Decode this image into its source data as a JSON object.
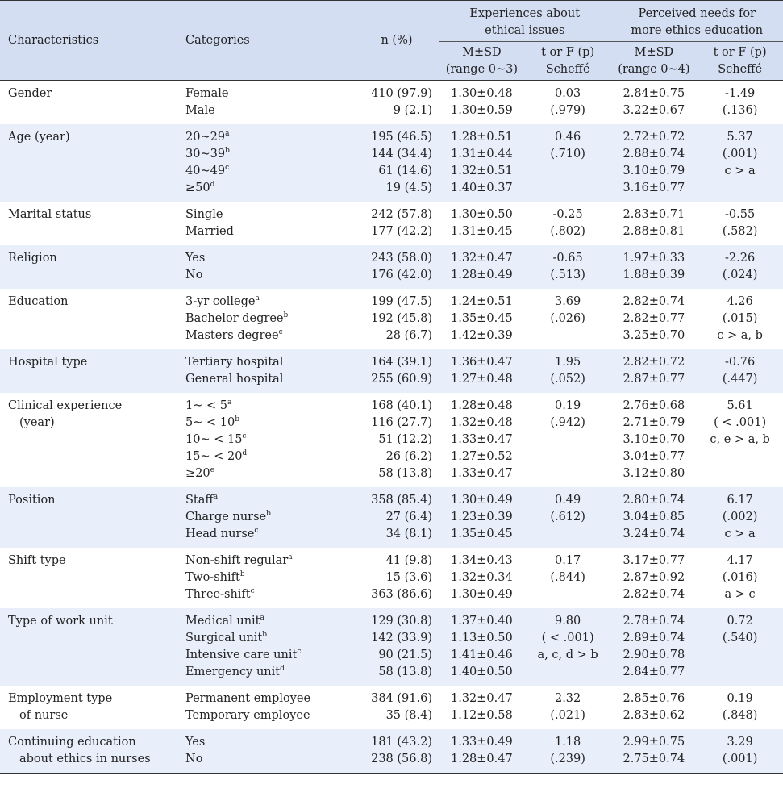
{
  "header": {
    "characteristics": "Characteristics",
    "categories": "Categories",
    "n_pct": "n (%)",
    "group1": [
      "Experiences about",
      "ethical issues"
    ],
    "group2": [
      "Perceived needs for",
      "more ethics education"
    ],
    "msd1": [
      "M±SD",
      "(range 0~3)"
    ],
    "stat1": [
      "t or F (p)",
      "Scheffé"
    ],
    "msd2": [
      "M±SD",
      "(range 0~4)"
    ],
    "stat2": [
      "t or F (p)",
      "Scheffé"
    ]
  },
  "rows": [
    {
      "char": [
        "Gender"
      ],
      "cats": [
        [
          "Female",
          ""
        ],
        [
          "Male",
          ""
        ]
      ],
      "n": [
        "410 (97.9)",
        "9 (2.1)"
      ],
      "m1": [
        "1.30±0.48",
        "1.30±0.59"
      ],
      "s1": [
        "0.03",
        "(.979)"
      ],
      "m2": [
        "2.84±0.75",
        "3.22±0.67"
      ],
      "s2": [
        "-1.49",
        "(.136)"
      ]
    },
    {
      "char": [
        "Age (year)"
      ],
      "cats": [
        [
          "20~29",
          "a"
        ],
        [
          "30~39",
          "b"
        ],
        [
          "40~49",
          "c"
        ],
        [
          "≥50",
          "d"
        ]
      ],
      "n": [
        "195 (46.5)",
        "144 (34.4)",
        "61 (14.6)",
        "19 (4.5)"
      ],
      "m1": [
        "1.28±0.51",
        "1.31±0.44",
        "1.32±0.51",
        "1.40±0.37"
      ],
      "s1": [
        "0.46",
        "(.710)"
      ],
      "m2": [
        "2.72±0.72",
        "2.88±0.74",
        "3.10±0.79",
        "3.16±0.77"
      ],
      "s2": [
        "5.37",
        "(.001)",
        "c > a"
      ]
    },
    {
      "char": [
        "Marital status"
      ],
      "cats": [
        [
          "Single",
          ""
        ],
        [
          "Married",
          ""
        ]
      ],
      "n": [
        "242 (57.8)",
        "177 (42.2)"
      ],
      "m1": [
        "1.30±0.50",
        "1.31±0.45"
      ],
      "s1": [
        "-0.25",
        "(.802)"
      ],
      "m2": [
        "2.83±0.71",
        "2.88±0.81"
      ],
      "s2": [
        "-0.55",
        "(.582)"
      ]
    },
    {
      "char": [
        "Religion"
      ],
      "cats": [
        [
          "Yes",
          ""
        ],
        [
          "No",
          ""
        ]
      ],
      "n": [
        "243 (58.0)",
        "176 (42.0)"
      ],
      "m1": [
        "1.32±0.47",
        "1.28±0.49"
      ],
      "s1": [
        "-0.65",
        "(.513)"
      ],
      "m2": [
        "1.97±0.33",
        "1.88±0.39"
      ],
      "s2": [
        "-2.26",
        "(.024)"
      ]
    },
    {
      "char": [
        "Education"
      ],
      "cats": [
        [
          "3-yr college",
          "a"
        ],
        [
          "Bachelor degree",
          "b"
        ],
        [
          "Masters degree",
          "c"
        ]
      ],
      "n": [
        "199 (47.5)",
        "192 (45.8)",
        "28 (6.7)"
      ],
      "m1": [
        "1.24±0.51",
        "1.35±0.45",
        "1.42±0.39"
      ],
      "s1": [
        "3.69",
        "(.026)"
      ],
      "m2": [
        "2.82±0.74",
        "2.82±0.77",
        "3.25±0.70"
      ],
      "s2": [
        "4.26",
        "(.015)",
        "c > a, b"
      ]
    },
    {
      "char": [
        "Hospital type"
      ],
      "cats": [
        [
          "Tertiary hospital",
          ""
        ],
        [
          "General hospital",
          ""
        ]
      ],
      "n": [
        "164 (39.1)",
        "255 (60.9)"
      ],
      "m1": [
        "1.36±0.47",
        "1.27±0.48"
      ],
      "s1": [
        "1.95",
        "(.052)"
      ],
      "m2": [
        "2.82±0.72",
        "2.87±0.77"
      ],
      "s2": [
        "-0.76",
        "(.447)"
      ]
    },
    {
      "char": [
        "Clinical experience",
        "(year)"
      ],
      "cats": [
        [
          "1~ < 5",
          "a"
        ],
        [
          "5~ < 10",
          "b"
        ],
        [
          "10~ < 15",
          "c"
        ],
        [
          "15~ < 20",
          "d"
        ],
        [
          "≥20",
          "e"
        ]
      ],
      "n": [
        "168 (40.1)",
        "116 (27.7)",
        "51 (12.2)",
        "26 (6.2)",
        "58 (13.8)"
      ],
      "m1": [
        "1.28±0.48",
        "1.32±0.48",
        "1.33±0.47",
        "1.27±0.52",
        "1.33±0.47"
      ],
      "s1": [
        "0.19",
        "(.942)"
      ],
      "m2": [
        "2.76±0.68",
        "2.71±0.79",
        "3.10±0.70",
        "3.04±0.77",
        "3.12±0.80"
      ],
      "s2": [
        "5.61",
        "( < .001)",
        "c, e > a, b"
      ]
    },
    {
      "char": [
        "Position"
      ],
      "cats": [
        [
          "Staff",
          "a"
        ],
        [
          "Charge nurse",
          "b"
        ],
        [
          "Head nurse",
          "c"
        ]
      ],
      "n": [
        "358 (85.4)",
        "27 (6.4)",
        "34 (8.1)"
      ],
      "m1": [
        "1.30±0.49",
        "1.23±0.39",
        "1.35±0.45"
      ],
      "s1": [
        "0.49",
        "(.612)"
      ],
      "m2": [
        "2.80±0.74",
        "3.04±0.85",
        "3.24±0.74"
      ],
      "s2": [
        "6.17",
        "(.002)",
        "c > a"
      ]
    },
    {
      "char": [
        "Shift type"
      ],
      "cats": [
        [
          "Non-shift regular",
          "a"
        ],
        [
          "Two-shift",
          "b"
        ],
        [
          "Three-shift",
          "c"
        ]
      ],
      "n": [
        "41 (9.8)",
        "15 (3.6)",
        "363 (86.6)"
      ],
      "m1": [
        "1.34±0.43",
        "1.32±0.34",
        "1.30±0.49"
      ],
      "s1": [
        "0.17",
        "(.844)"
      ],
      "m2": [
        "3.17±0.77",
        "2.87±0.92",
        "2.82±0.74"
      ],
      "s2": [
        "4.17",
        "(.016)",
        "a > c"
      ]
    },
    {
      "char": [
        "Type of work unit"
      ],
      "cats": [
        [
          "Medical unit",
          "a"
        ],
        [
          "Surgical unit",
          "b"
        ],
        [
          "Intensive care unit",
          "c"
        ],
        [
          "Emergency unit",
          "d"
        ]
      ],
      "n": [
        "129 (30.8)",
        "142 (33.9)",
        "90 (21.5)",
        "58 (13.8)"
      ],
      "m1": [
        "1.37±0.40",
        "1.13±0.50",
        "1.41±0.46",
        "1.40±0.50"
      ],
      "s1": [
        "9.80",
        "( < .001)",
        "a, c, d > b"
      ],
      "m2": [
        "2.78±0.74",
        "2.89±0.74",
        "2.90±0.78",
        "2.84±0.77"
      ],
      "s2": [
        "0.72",
        "(.540)"
      ]
    },
    {
      "char": [
        "Employment type",
        "of nurse"
      ],
      "cats": [
        [
          "Permanent employee",
          ""
        ],
        [
          "Temporary employee",
          ""
        ]
      ],
      "n": [
        "384 (91.6)",
        "35 (8.4)"
      ],
      "m1": [
        "1.32±0.47",
        "1.12±0.58"
      ],
      "s1": [
        "2.32",
        "(.021)"
      ],
      "m2": [
        "2.85±0.76",
        "2.83±0.62"
      ],
      "s2": [
        "0.19",
        "(.848)"
      ]
    },
    {
      "char": [
        "Continuing education",
        "about ethics in nurses"
      ],
      "cats": [
        [
          "Yes",
          ""
        ],
        [
          "No",
          ""
        ]
      ],
      "n": [
        "181 (43.2)",
        "238 (56.8)"
      ],
      "m1": [
        "1.33±0.49",
        "1.28±0.47"
      ],
      "s1": [
        "1.18",
        "(.239)"
      ],
      "m2": [
        "2.99±0.75",
        "2.75±0.74"
      ],
      "s2": [
        "3.29",
        "(.001)"
      ]
    }
  ]
}
